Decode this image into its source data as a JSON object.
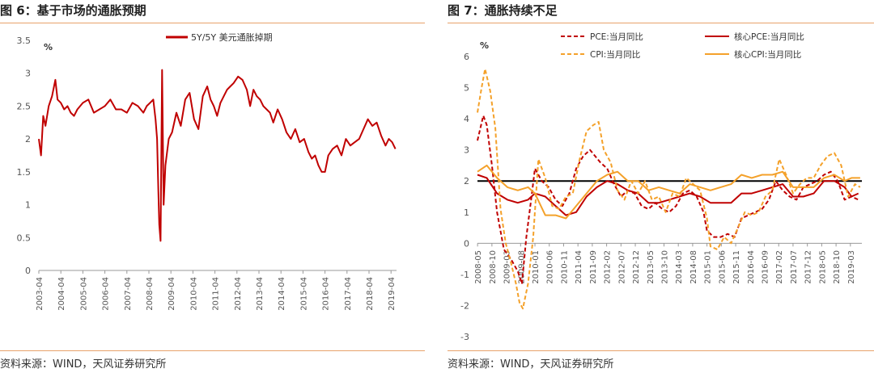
{
  "left": {
    "title": "图 6：基于市场的通胀预期",
    "source": "资料来源：WIND，天风证券研究所",
    "chart_data": {
      "type": "line",
      "title": "",
      "ylabel": "%",
      "ylim": [
        0,
        3.5
      ],
      "yticks": [
        "0",
        "0.5",
        "1",
        "1.5",
        "2",
        "2.5",
        "3",
        "3.5"
      ],
      "xlim": [
        2003.25,
        2019.5
      ],
      "xtick_labels": [
        "2003-04",
        "2004-04",
        "2005-04",
        "2006-04",
        "2007-04",
        "2008-04",
        "2009-04",
        "2010-04",
        "2011-04",
        "2012-04",
        "2013-04",
        "2014-04",
        "2015-04",
        "2016-04",
        "2017-04",
        "2018-04",
        "2019-04"
      ],
      "legend_position": "top-center",
      "grid": false,
      "colors": {
        "series": "#c00000"
      },
      "series": [
        {
          "name": "5Y/5Y 美元通胀掉期",
          "x": [
            2003.25,
            2003.35,
            2003.45,
            2003.55,
            2003.7,
            2003.85,
            2004.0,
            2004.1,
            2004.25,
            2004.4,
            2004.55,
            2004.7,
            2004.85,
            2005.0,
            2005.25,
            2005.5,
            2005.75,
            2006.0,
            2006.25,
            2006.5,
            2006.75,
            2007.0,
            2007.25,
            2007.5,
            2007.75,
            2008.0,
            2008.15,
            2008.3,
            2008.45,
            2008.55,
            2008.62,
            2008.68,
            2008.72,
            2008.78,
            2008.85,
            2008.92,
            2009.0,
            2009.15,
            2009.3,
            2009.5,
            2009.7,
            2009.9,
            2010.1,
            2010.3,
            2010.5,
            2010.7,
            2010.9,
            2011.05,
            2011.2,
            2011.35,
            2011.5,
            2011.65,
            2011.8,
            2011.95,
            2012.1,
            2012.3,
            2012.5,
            2012.7,
            2012.85,
            2013.0,
            2013.15,
            2013.3,
            2013.45,
            2013.6,
            2013.75,
            2013.9,
            2014.1,
            2014.3,
            2014.5,
            2014.7,
            2014.9,
            2015.1,
            2015.3,
            2015.5,
            2015.65,
            2015.8,
            2015.95,
            2016.1,
            2016.25,
            2016.4,
            2016.6,
            2016.8,
            2017.0,
            2017.2,
            2017.4,
            2017.6,
            2017.8,
            2018.0,
            2018.2,
            2018.4,
            2018.6,
            2018.8,
            2019.0,
            2019.15,
            2019.3,
            2019.45
          ],
          "y": [
            2.0,
            1.75,
            2.35,
            2.2,
            2.5,
            2.65,
            2.9,
            2.6,
            2.55,
            2.45,
            2.5,
            2.4,
            2.35,
            2.45,
            2.55,
            2.6,
            2.4,
            2.45,
            2.5,
            2.6,
            2.45,
            2.45,
            2.4,
            2.55,
            2.5,
            2.4,
            2.5,
            2.55,
            2.6,
            2.3,
            2.0,
            1.2,
            0.7,
            0.45,
            3.05,
            1.0,
            1.6,
            2.0,
            2.1,
            2.4,
            2.2,
            2.6,
            2.7,
            2.3,
            2.15,
            2.65,
            2.8,
            2.6,
            2.5,
            2.35,
            2.55,
            2.65,
            2.75,
            2.8,
            2.85,
            2.95,
            2.9,
            2.75,
            2.5,
            2.75,
            2.65,
            2.6,
            2.5,
            2.45,
            2.4,
            2.25,
            2.45,
            2.3,
            2.1,
            2.0,
            2.15,
            1.95,
            2.0,
            1.8,
            1.7,
            1.75,
            1.6,
            1.5,
            1.5,
            1.75,
            1.85,
            1.9,
            1.75,
            2.0,
            1.9,
            1.95,
            2.0,
            2.15,
            2.3,
            2.2,
            2.25,
            2.05,
            1.9,
            2.0,
            1.95,
            1.85
          ]
        }
      ]
    }
  },
  "right": {
    "title": "图 7：通胀持续不足",
    "source": "资料来源：WIND，天风证券研究所",
    "chart_data": {
      "type": "line",
      "title": "",
      "ylabel": "%",
      "ylim": [
        -3,
        6
      ],
      "yticks": [
        "-3",
        "-2",
        "-1",
        "0",
        "1",
        "2",
        "3",
        "4",
        "5",
        "6"
      ],
      "xlim": [
        2008.33,
        2019.5
      ],
      "xtick_labels": [
        "2008-05",
        "2008-10",
        "2009-03",
        "2009-08",
        "2010-01",
        "2010-06",
        "2010-11",
        "2011-04",
        "2011-09",
        "2012-02",
        "2012-07",
        "2012-12",
        "2013-05",
        "2013-10",
        "2014-03",
        "2014-08",
        "2015-01",
        "2015-06",
        "2015-11",
        "2016-04",
        "2016-09",
        "2017-02",
        "2017-07",
        "2017-12",
        "2018-05",
        "2018-10",
        "2019-03"
      ],
      "reference_line": 2,
      "legend_position": "top",
      "grid": false,
      "colors": {
        "pce": "#c00000",
        "core_pce": "#c00000",
        "cpi": "#f4a12a",
        "core_cpi": "#f4a12a",
        "reference": "#000000"
      },
      "series": [
        {
          "name": "PCE:当月同比",
          "style": "dashed",
          "x": [
            2008.33,
            2008.5,
            2008.6,
            2008.75,
            2008.9,
            2009.1,
            2009.3,
            2009.5,
            2009.62,
            2009.75,
            2009.9,
            2010.0,
            2010.2,
            2010.4,
            2010.6,
            2010.8,
            2011.0,
            2011.2,
            2011.4,
            2011.6,
            2011.75,
            2011.9,
            2012.1,
            2012.3,
            2012.5,
            2012.7,
            2012.9,
            2013.1,
            2013.3,
            2013.5,
            2013.7,
            2013.9,
            2014.1,
            2014.3,
            2014.5,
            2014.7,
            2014.9,
            2015.0,
            2015.2,
            2015.4,
            2015.6,
            2015.8,
            2016.0,
            2016.2,
            2016.4,
            2016.6,
            2016.8,
            2017.0,
            2017.2,
            2017.4,
            2017.6,
            2017.8,
            2018.0,
            2018.2,
            2018.4,
            2018.6,
            2018.8,
            2019.0,
            2019.2,
            2019.4
          ],
          "y": [
            3.3,
            4.1,
            3.8,
            2.5,
            1.0,
            -0.2,
            -0.5,
            -0.9,
            -1.3,
            0.2,
            1.5,
            2.4,
            2.0,
            1.8,
            1.4,
            1.2,
            1.6,
            2.4,
            2.8,
            3.0,
            2.8,
            2.6,
            2.4,
            1.9,
            1.5,
            1.7,
            1.6,
            1.2,
            1.1,
            1.3,
            1.1,
            1.0,
            1.2,
            1.6,
            1.7,
            1.5,
            1.0,
            0.4,
            0.2,
            0.2,
            0.3,
            0.2,
            0.8,
            0.9,
            1.0,
            1.1,
            1.4,
            2.0,
            1.7,
            1.5,
            1.4,
            1.8,
            1.9,
            2.0,
            2.2,
            2.3,
            2.0,
            1.4,
            1.5,
            1.4
          ]
        },
        {
          "name": "核心PCE:当月同比",
          "style": "solid",
          "x": [
            2008.33,
            2008.6,
            2008.9,
            2009.2,
            2009.5,
            2009.8,
            2010.0,
            2010.3,
            2010.6,
            2010.9,
            2011.2,
            2011.5,
            2011.8,
            2012.1,
            2012.4,
            2012.7,
            2013.0,
            2013.3,
            2013.6,
            2013.9,
            2014.2,
            2014.5,
            2014.8,
            2015.1,
            2015.4,
            2015.7,
            2016.0,
            2016.3,
            2016.6,
            2016.9,
            2017.2,
            2017.5,
            2017.8,
            2018.1,
            2018.4,
            2018.7,
            2019.0,
            2019.2,
            2019.4
          ],
          "y": [
            2.2,
            2.1,
            1.6,
            1.4,
            1.3,
            1.4,
            1.6,
            1.5,
            1.2,
            0.9,
            1.0,
            1.5,
            1.8,
            2.0,
            1.9,
            1.7,
            1.6,
            1.3,
            1.3,
            1.4,
            1.5,
            1.6,
            1.5,
            1.3,
            1.3,
            1.3,
            1.6,
            1.6,
            1.7,
            1.8,
            1.9,
            1.5,
            1.5,
            1.6,
            2.0,
            2.0,
            1.8,
            1.5,
            1.6
          ]
        },
        {
          "name": "CPI:当月同比",
          "style": "dashed",
          "x": [
            2008.33,
            2008.45,
            2008.55,
            2008.7,
            2008.85,
            2009.0,
            2009.15,
            2009.3,
            2009.45,
            2009.55,
            2009.65,
            2009.8,
            2009.95,
            2010.1,
            2010.3,
            2010.5,
            2010.7,
            2010.9,
            2011.1,
            2011.3,
            2011.5,
            2011.7,
            2011.85,
            2012.0,
            2012.2,
            2012.4,
            2012.6,
            2012.8,
            2013.0,
            2013.2,
            2013.4,
            2013.6,
            2013.8,
            2014.0,
            2014.2,
            2014.4,
            2014.6,
            2014.8,
            2015.0,
            2015.1,
            2015.3,
            2015.5,
            2015.7,
            2015.9,
            2016.1,
            2016.3,
            2016.5,
            2016.7,
            2016.9,
            2017.1,
            2017.3,
            2017.5,
            2017.7,
            2017.9,
            2018.1,
            2018.3,
            2018.5,
            2018.7,
            2018.9,
            2019.1,
            2019.3,
            2019.45
          ],
          "y": [
            4.2,
            5.0,
            5.6,
            4.9,
            3.7,
            1.1,
            0.0,
            -0.6,
            -1.3,
            -1.9,
            -2.1,
            -1.3,
            0.2,
            2.7,
            2.1,
            1.2,
            1.1,
            1.5,
            1.6,
            2.7,
            3.6,
            3.8,
            3.9,
            3.0,
            2.6,
            1.7,
            1.4,
            2.0,
            1.6,
            2.0,
            1.4,
            1.5,
            1.0,
            1.6,
            1.5,
            2.1,
            1.9,
            1.7,
            0.8,
            -0.1,
            -0.2,
            0.2,
            0.0,
            0.5,
            1.0,
            0.9,
            1.0,
            1.5,
            1.7,
            2.7,
            2.2,
            1.6,
            1.9,
            2.1,
            2.1,
            2.5,
            2.8,
            2.9,
            2.5,
            1.5,
            1.9,
            1.8
          ]
        },
        {
          "name": "核心CPI:当月同比",
          "style": "solid",
          "x": [
            2008.33,
            2008.6,
            2008.9,
            2009.2,
            2009.5,
            2009.8,
            2010.0,
            2010.3,
            2010.6,
            2010.9,
            2011.2,
            2011.5,
            2011.8,
            2012.1,
            2012.4,
            2012.7,
            2013.0,
            2013.3,
            2013.6,
            2013.9,
            2014.2,
            2014.5,
            2014.8,
            2015.1,
            2015.4,
            2015.7,
            2016.0,
            2016.3,
            2016.6,
            2016.9,
            2017.2,
            2017.5,
            2017.8,
            2018.1,
            2018.4,
            2018.7,
            2019.0,
            2019.2,
            2019.45
          ],
          "y": [
            2.3,
            2.5,
            2.1,
            1.8,
            1.7,
            1.8,
            1.6,
            0.9,
            0.9,
            0.8,
            1.2,
            1.6,
            2.0,
            2.2,
            2.3,
            2.0,
            2.0,
            1.7,
            1.8,
            1.7,
            1.6,
            1.9,
            1.8,
            1.7,
            1.8,
            1.9,
            2.2,
            2.1,
            2.2,
            2.2,
            2.3,
            1.8,
            1.8,
            1.8,
            2.1,
            2.2,
            2.0,
            2.1,
            2.1
          ]
        }
      ]
    }
  }
}
